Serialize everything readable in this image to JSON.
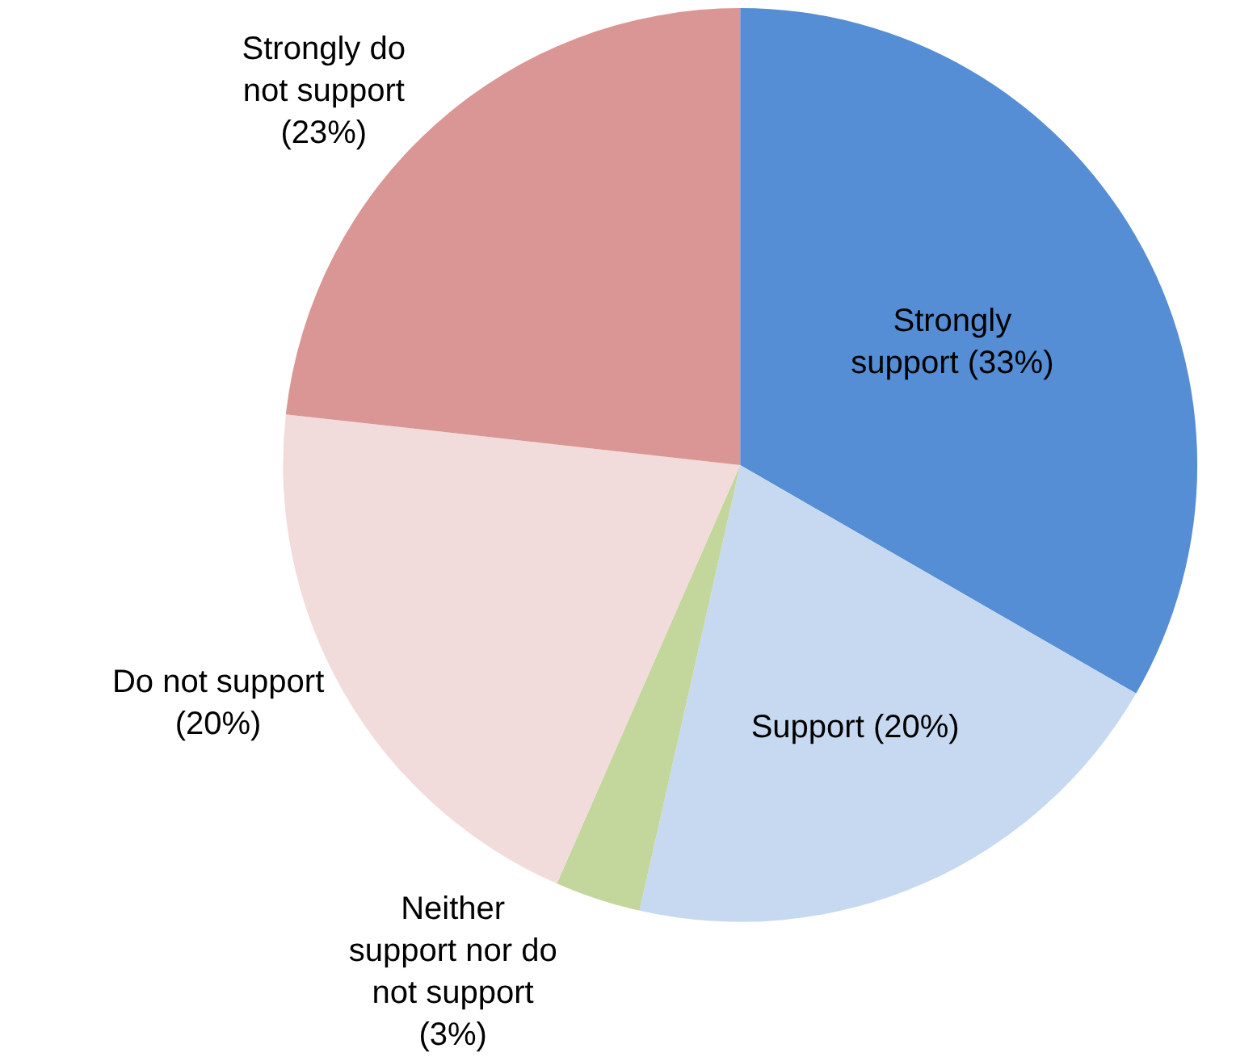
{
  "chart_data": {
    "type": "pie",
    "categories": [
      "Strongly support (33%)",
      "Support (20%)",
      "Neither support nor do not support (3%)",
      "Do not support (20%)",
      "Strongly do not support (23%)"
    ],
    "values": [
      33,
      20,
      3,
      20,
      23
    ],
    "colors": [
      "#558ed5",
      "#c6d9f1",
      "#c3d69b",
      "#f2dcdb",
      "#d99694"
    ],
    "legend": false
  }
}
